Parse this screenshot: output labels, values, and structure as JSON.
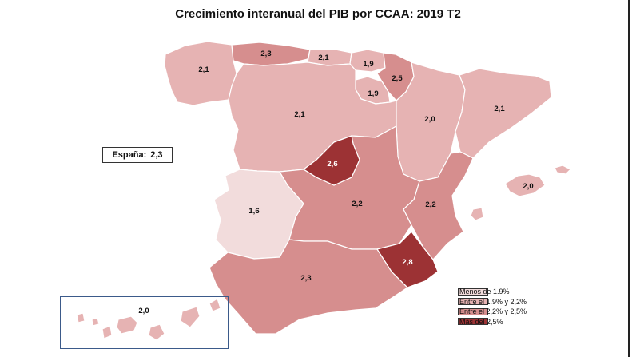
{
  "title": "Crecimiento interanual del PIB por CCAA: 2019 T2",
  "national": {
    "label": "España:",
    "value": "2,3"
  },
  "colors": {
    "c1": "#f2dcdc",
    "c2": "#e6b3b3",
    "c3": "#d68e8e",
    "c4": "#9c3234"
  },
  "legend": [
    {
      "label": "Menos de 1.9%",
      "color_key": "c1"
    },
    {
      "label": "Entre el 1.9% y 2,2%",
      "color_key": "c2"
    },
    {
      "label": "Entre el 2,2% y 2,5%",
      "color_key": "c3"
    },
    {
      "label": "Más del 2,5%",
      "color_key": "c4"
    }
  ],
  "regions": {
    "galicia": {
      "value": "2,1",
      "color_key": "c2"
    },
    "asturias": {
      "value": "2,3",
      "color_key": "c3"
    },
    "cantabria": {
      "value": "2,1",
      "color_key": "c2"
    },
    "pais_vasco": {
      "value": "1,9",
      "color_key": "c2"
    },
    "navarra": {
      "value": "2,5",
      "color_key": "c3"
    },
    "la_rioja": {
      "value": "1,9",
      "color_key": "c2"
    },
    "aragon": {
      "value": "2,0",
      "color_key": "c2"
    },
    "cataluna": {
      "value": "2,1",
      "color_key": "c2"
    },
    "castilla_leon": {
      "value": "2,1",
      "color_key": "c2"
    },
    "madrid": {
      "value": "2,6",
      "color_key": "c4"
    },
    "extremadura": {
      "value": "1,6",
      "color_key": "c1"
    },
    "castilla_la_mancha": {
      "value": "2,2",
      "color_key": "c3"
    },
    "valencia": {
      "value": "2,2",
      "color_key": "c3"
    },
    "baleares": {
      "value": "2,0",
      "color_key": "c2"
    },
    "andalucia": {
      "value": "2,3",
      "color_key": "c3"
    },
    "murcia": {
      "value": "2,8",
      "color_key": "c4"
    },
    "canarias": {
      "value": "2,0",
      "color_key": "c2"
    }
  }
}
